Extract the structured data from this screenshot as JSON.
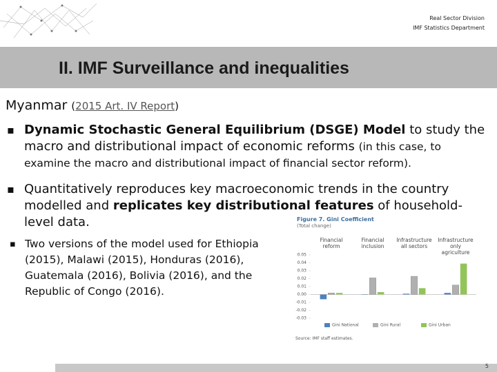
{
  "header": {
    "division": "Real Sector Division",
    "department": "IMF Statistics Department",
    "title": "II. IMF Surveillance and inequalities"
  },
  "subtitle": [
    {
      "text": "Myanmar"
    },
    {
      "text": "(",
      "small": true
    },
    {
      "text": "2015 Art. IV Report",
      "small": true,
      "link": true
    },
    {
      "text": ")",
      "small": true
    }
  ],
  "bullets": [
    [
      {
        "text": "Dynamic Stochastic General Equilibrium (DSGE) Model",
        "bold": true
      },
      {
        "text": " to study the macro and distributional impact of economic reforms "
      },
      {
        "text": "(in this case, to examine the macro and distributional impact of financial sector reform).",
        "small": true
      }
    ],
    [
      {
        "text": "Quantitatively reproduces key macroeconomic trends in the country modelled and "
      },
      {
        "text": "replicates key distributional features",
        "bold": true
      },
      {
        "text": " of household-level data."
      }
    ]
  ],
  "sub_bullet": "Two versions of the model used for Ethiopia (2015), Malawi (2015), Honduras (2016), Guatemala (2016), Bolivia (2016), and the Republic of Congo (2016).",
  "page_number": "5",
  "chart_data": {
    "type": "bar",
    "title": "Figure 7. Gini Coefficient",
    "subtitle": "(Total change)",
    "categories": [
      "Financial reform",
      "Financial inclusion",
      "Infrastructure all sectors",
      "Infrastructure only agriculture"
    ],
    "series": [
      {
        "name": "Gini National",
        "color": "#4f81bd",
        "values": [
          -0.006,
          0.0,
          0.001,
          0.002
        ]
      },
      {
        "name": "Gini Rural",
        "color": "#b0b0b0",
        "values": [
          0.002,
          0.021,
          0.023,
          0.012
        ]
      },
      {
        "name": "Gini Urban",
        "color": "#92c45a",
        "values": [
          0.002,
          0.003,
          0.008,
          0.039
        ]
      }
    ],
    "ylim": [
      -0.03,
      0.05
    ],
    "yticks": [
      -0.03,
      -0.02,
      -0.01,
      {
        "value": 0,
        "label": "0.00"
      },
      0.01,
      0.02,
      0.03,
      0.04,
      0.05
    ],
    "source": "Source: IMF staff estimates."
  }
}
